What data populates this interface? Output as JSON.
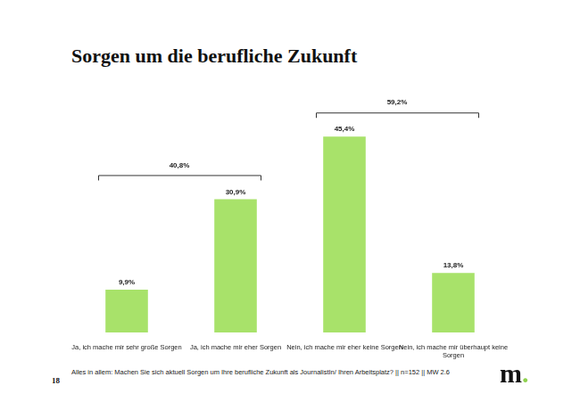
{
  "chart_data": {
    "type": "bar",
    "title": "Sorgen um die berufliche Zukunft",
    "categories": [
      "Ja, ich mache mir sehr große Sorgen",
      "Ja, ich mache mir eher Sorgen",
      "Nein, ich mache mir eher keine Sorgen",
      "Nein, ich mache mir überhaupt keine Sorgen"
    ],
    "values": [
      9.9,
      30.9,
      45.4,
      13.8
    ],
    "value_labels": [
      "9,9%",
      "30,9%",
      "45,4%",
      "13,8%"
    ],
    "data_labels": true,
    "color": "#a8e26a",
    "ylim": [
      0,
      50
    ],
    "grid": false,
    "tick_labels": "x",
    "brackets": [
      {
        "categories": [
          "Ja, ich mache mir sehr große Sorgen",
          "Ja, ich mache mir eher Sorgen"
        ],
        "value": 40.8,
        "label": "40,8%"
      },
      {
        "categories": [
          "Nein, ich mache mir eher keine Sorgen",
          "Nein, ich mache mir überhaupt keine Sorgen"
        ],
        "value": 59.2,
        "label": "59,2%"
      }
    ],
    "footnote": "Alles in allem: Machen Sie sich aktuell Sorgen um Ihre berufliche Zukunft als JournalistIn/ Ihren Arbeitsplatz? || n=152 || MW 2.6",
    "page_number": "18",
    "logo": "m."
  }
}
